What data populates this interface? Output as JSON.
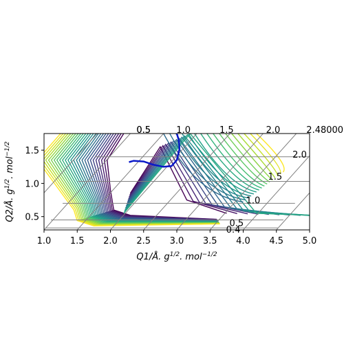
{
  "chart_data": {
    "type": "contour",
    "title": "",
    "xlabel": "Q1/Å. g^1/2. mol^-1/2",
    "ylabel": "Q2/Å. g^1/2. mol^-1/2",
    "xlabel_main": "Q1/Å. g",
    "xlabel_sup1": "1/2",
    "xlabel_mid": ". mol",
    "xlabel_sup2": "−1/2",
    "ylabel_main": "Q2/Å. g",
    "ylabel_sup1": "1/2",
    "ylabel_mid": ". mol",
    "ylabel_sup2": "−1/2",
    "xlim": [
      1.0,
      5.0
    ],
    "ylim": [
      0.3,
      1.75
    ],
    "x_ticks": [
      "1.0",
      "1.5",
      "2.0",
      "2.5",
      "3.0",
      "3.5",
      "4.0",
      "4.5",
      "5.0"
    ],
    "y_ticks": [
      "0.5",
      "1.0",
      "1.5"
    ],
    "top_labels": [
      "0.5",
      "0.5",
      "1.0",
      "1.5",
      "2.0",
      "2.48000"
    ],
    "right_labels": [
      "0.4",
      "0.5",
      "1.0",
      "1.5",
      "2.0"
    ],
    "grid": "skewed",
    "colormap": "viridis",
    "path": {
      "color": "#0a18c8",
      "points": [
        [
          2.28,
          1.32
        ],
        [
          2.35,
          1.34
        ],
        [
          2.5,
          1.33
        ],
        [
          2.65,
          1.28
        ],
        [
          2.8,
          1.25
        ],
        [
          2.92,
          1.26
        ],
        [
          3.0,
          1.35
        ],
        [
          3.04,
          1.52
        ],
        [
          3.03,
          1.65
        ],
        [
          3.0,
          1.75
        ]
      ]
    },
    "minimum": [
      2.55,
      1.05
    ],
    "valley": [
      3.2,
      0.43
    ]
  }
}
